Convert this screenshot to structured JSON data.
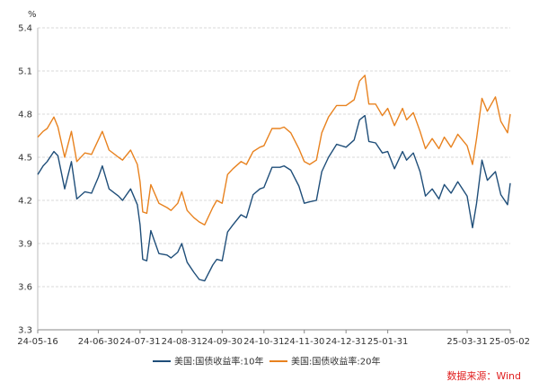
{
  "chart_data": {
    "type": "line",
    "unit_label": "%",
    "ylim": [
      3.3,
      5.4
    ],
    "yticks": [
      3.3,
      3.6,
      3.9,
      4.2,
      4.5,
      4.8,
      5.1,
      5.4
    ],
    "ytick_labels": [
      "3.3",
      "3.6",
      "3.9",
      "4.2",
      "4.5",
      "4.8",
      "5.1",
      "5.4"
    ],
    "xtick_labels": [
      "24-05-16",
      "24-06-30",
      "24-07-31",
      "24-08-31",
      "24-09-30",
      "24-10-31",
      "24-11-30",
      "24-12-31",
      "25-01-31",
      "25-03-31",
      "25-05-02"
    ],
    "xtick_dates": [
      "2024-05-16",
      "2024-06-30",
      "2024-07-31",
      "2024-08-31",
      "2024-09-30",
      "2024-10-31",
      "2024-11-30",
      "2024-12-31",
      "2025-01-31",
      "2025-03-31",
      "2025-05-02"
    ],
    "grid": "horizontal",
    "legend_position": "bottom",
    "series": [
      {
        "name": "美国:国债收益率:10年",
        "color": "#1f4e79",
        "points": [
          [
            "2024-05-16",
            4.38
          ],
          [
            "2024-05-20",
            4.44
          ],
          [
            "2024-05-23",
            4.47
          ],
          [
            "2024-05-28",
            4.54
          ],
          [
            "2024-05-31",
            4.51
          ],
          [
            "2024-06-05",
            4.28
          ],
          [
            "2024-06-10",
            4.47
          ],
          [
            "2024-06-14",
            4.21
          ],
          [
            "2024-06-20",
            4.26
          ],
          [
            "2024-06-25",
            4.25
          ],
          [
            "2024-06-30",
            4.36
          ],
          [
            "2024-07-03",
            4.44
          ],
          [
            "2024-07-08",
            4.28
          ],
          [
            "2024-07-15",
            4.23
          ],
          [
            "2024-07-18",
            4.2
          ],
          [
            "2024-07-24",
            4.28
          ],
          [
            "2024-07-29",
            4.17
          ],
          [
            "2024-07-31",
            4.03
          ],
          [
            "2024-08-02",
            3.79
          ],
          [
            "2024-08-05",
            3.78
          ],
          [
            "2024-08-08",
            3.99
          ],
          [
            "2024-08-14",
            3.83
          ],
          [
            "2024-08-20",
            3.82
          ],
          [
            "2024-08-23",
            3.8
          ],
          [
            "2024-08-28",
            3.84
          ],
          [
            "2024-08-31",
            3.9
          ],
          [
            "2024-09-04",
            3.77
          ],
          [
            "2024-09-09",
            3.7
          ],
          [
            "2024-09-13",
            3.65
          ],
          [
            "2024-09-17",
            3.64
          ],
          [
            "2024-09-23",
            3.75
          ],
          [
            "2024-09-26",
            3.79
          ],
          [
            "2024-09-30",
            3.78
          ],
          [
            "2024-10-04",
            3.98
          ],
          [
            "2024-10-08",
            4.03
          ],
          [
            "2024-10-14",
            4.1
          ],
          [
            "2024-10-18",
            4.08
          ],
          [
            "2024-10-23",
            4.24
          ],
          [
            "2024-10-28",
            4.28
          ],
          [
            "2024-10-31",
            4.29
          ],
          [
            "2024-11-06",
            4.43
          ],
          [
            "2024-11-12",
            4.43
          ],
          [
            "2024-11-15",
            4.44
          ],
          [
            "2024-11-20",
            4.41
          ],
          [
            "2024-11-26",
            4.3
          ],
          [
            "2024-11-30",
            4.18
          ],
          [
            "2024-12-04",
            4.19
          ],
          [
            "2024-12-09",
            4.2
          ],
          [
            "2024-12-13",
            4.4
          ],
          [
            "2024-12-18",
            4.5
          ],
          [
            "2024-12-24",
            4.59
          ],
          [
            "2024-12-31",
            4.57
          ],
          [
            "2025-01-06",
            4.62
          ],
          [
            "2025-01-10",
            4.76
          ],
          [
            "2025-01-14",
            4.79
          ],
          [
            "2025-01-17",
            4.61
          ],
          [
            "2025-01-22",
            4.6
          ],
          [
            "2025-01-27",
            4.53
          ],
          [
            "2025-01-31",
            4.54
          ],
          [
            "2025-02-05",
            4.42
          ],
          [
            "2025-02-11",
            4.54
          ],
          [
            "2025-02-14",
            4.48
          ],
          [
            "2025-02-19",
            4.53
          ],
          [
            "2025-02-24",
            4.4
          ],
          [
            "2025-02-28",
            4.23
          ],
          [
            "2025-03-05",
            4.28
          ],
          [
            "2025-03-10",
            4.21
          ],
          [
            "2025-03-14",
            4.31
          ],
          [
            "2025-03-19",
            4.25
          ],
          [
            "2025-03-24",
            4.33
          ],
          [
            "2025-03-31",
            4.23
          ],
          [
            "2025-04-04",
            4.01
          ],
          [
            "2025-04-07",
            4.18
          ],
          [
            "2025-04-11",
            4.48
          ],
          [
            "2025-04-15",
            4.34
          ],
          [
            "2025-04-21",
            4.4
          ],
          [
            "2025-04-25",
            4.24
          ],
          [
            "2025-04-30",
            4.17
          ],
          [
            "2025-05-02",
            4.32
          ]
        ]
      },
      {
        "name": "美国:国债收益率:20年",
        "color": "#e8821f",
        "points": [
          [
            "2024-05-16",
            4.64
          ],
          [
            "2024-05-20",
            4.68
          ],
          [
            "2024-05-23",
            4.7
          ],
          [
            "2024-05-28",
            4.78
          ],
          [
            "2024-05-31",
            4.71
          ],
          [
            "2024-06-05",
            4.5
          ],
          [
            "2024-06-10",
            4.68
          ],
          [
            "2024-06-14",
            4.47
          ],
          [
            "2024-06-20",
            4.53
          ],
          [
            "2024-06-25",
            4.52
          ],
          [
            "2024-06-30",
            4.62
          ],
          [
            "2024-07-03",
            4.68
          ],
          [
            "2024-07-08",
            4.55
          ],
          [
            "2024-07-15",
            4.5
          ],
          [
            "2024-07-18",
            4.48
          ],
          [
            "2024-07-24",
            4.55
          ],
          [
            "2024-07-29",
            4.45
          ],
          [
            "2024-07-31",
            4.33
          ],
          [
            "2024-08-02",
            4.12
          ],
          [
            "2024-08-05",
            4.11
          ],
          [
            "2024-08-08",
            4.31
          ],
          [
            "2024-08-14",
            4.18
          ],
          [
            "2024-08-20",
            4.15
          ],
          [
            "2024-08-23",
            4.13
          ],
          [
            "2024-08-28",
            4.18
          ],
          [
            "2024-08-31",
            4.26
          ],
          [
            "2024-09-04",
            4.13
          ],
          [
            "2024-09-09",
            4.08
          ],
          [
            "2024-09-13",
            4.05
          ],
          [
            "2024-09-17",
            4.03
          ],
          [
            "2024-09-23",
            4.15
          ],
          [
            "2024-09-26",
            4.2
          ],
          [
            "2024-09-30",
            4.18
          ],
          [
            "2024-10-04",
            4.38
          ],
          [
            "2024-10-08",
            4.42
          ],
          [
            "2024-10-14",
            4.47
          ],
          [
            "2024-10-18",
            4.45
          ],
          [
            "2024-10-23",
            4.54
          ],
          [
            "2024-10-28",
            4.57
          ],
          [
            "2024-10-31",
            4.58
          ],
          [
            "2024-11-06",
            4.7
          ],
          [
            "2024-11-12",
            4.7
          ],
          [
            "2024-11-15",
            4.71
          ],
          [
            "2024-11-20",
            4.67
          ],
          [
            "2024-11-26",
            4.56
          ],
          [
            "2024-11-30",
            4.47
          ],
          [
            "2024-12-04",
            4.45
          ],
          [
            "2024-12-09",
            4.48
          ],
          [
            "2024-12-13",
            4.67
          ],
          [
            "2024-12-18",
            4.78
          ],
          [
            "2024-12-24",
            4.86
          ],
          [
            "2024-12-31",
            4.86
          ],
          [
            "2025-01-06",
            4.9
          ],
          [
            "2025-01-10",
            5.03
          ],
          [
            "2025-01-14",
            5.07
          ],
          [
            "2025-01-17",
            4.87
          ],
          [
            "2025-01-22",
            4.87
          ],
          [
            "2025-01-27",
            4.79
          ],
          [
            "2025-01-31",
            4.84
          ],
          [
            "2025-02-05",
            4.72
          ],
          [
            "2025-02-11",
            4.84
          ],
          [
            "2025-02-14",
            4.76
          ],
          [
            "2025-02-19",
            4.81
          ],
          [
            "2025-02-24",
            4.68
          ],
          [
            "2025-02-28",
            4.56
          ],
          [
            "2025-03-05",
            4.63
          ],
          [
            "2025-03-10",
            4.56
          ],
          [
            "2025-03-14",
            4.64
          ],
          [
            "2025-03-19",
            4.57
          ],
          [
            "2025-03-24",
            4.66
          ],
          [
            "2025-03-31",
            4.58
          ],
          [
            "2025-04-04",
            4.45
          ],
          [
            "2025-04-07",
            4.63
          ],
          [
            "2025-04-11",
            4.91
          ],
          [
            "2025-04-15",
            4.82
          ],
          [
            "2025-04-21",
            4.92
          ],
          [
            "2025-04-25",
            4.75
          ],
          [
            "2025-04-30",
            4.67
          ],
          [
            "2025-05-02",
            4.8
          ]
        ]
      }
    ]
  },
  "source": "数据来源：Wind"
}
